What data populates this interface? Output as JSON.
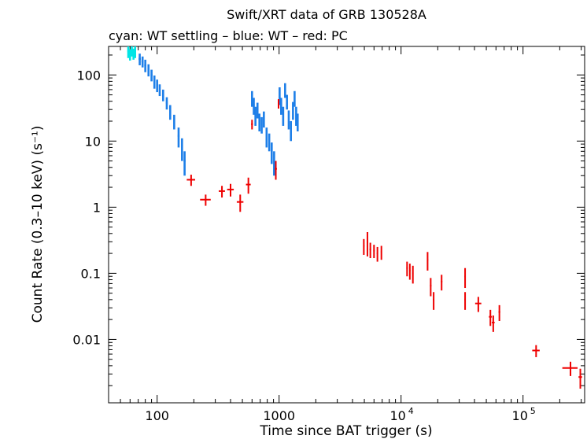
{
  "chart_data": {
    "type": "scatter",
    "title": "Swift/XRT data of GRB 130528A",
    "subtitle": "cyan: WT settling – blue: WT – red: PC",
    "xlabel": "Time since BAT trigger (s)",
    "ylabel": "Count Rate (0.3–10 keV) (s⁻¹)",
    "xscale": "log",
    "yscale": "log",
    "xlim": [
      40,
      320000
    ],
    "ylim": [
      0.0011,
      270
    ],
    "x_ticks": [
      {
        "value": 100,
        "label": "100"
      },
      {
        "value": 1000,
        "label": "1000"
      },
      {
        "value": 10000,
        "label": "10",
        "exp": "4"
      },
      {
        "value": 100000,
        "label": "10",
        "exp": "5"
      }
    ],
    "y_ticks": [
      {
        "value": 100,
        "label": "100"
      },
      {
        "value": 10,
        "label": "10"
      },
      {
        "value": 1,
        "label": "1"
      },
      {
        "value": 0.1,
        "label": "0.1"
      },
      {
        "value": 0.01,
        "label": "0.01"
      }
    ],
    "series": [
      {
        "name": "WT settling",
        "color": "#00e5e5",
        "style": "dense",
        "points": [
          [
            58,
            230,
            1,
            50
          ],
          [
            60,
            205,
            1,
            40
          ],
          [
            62,
            240,
            1,
            50
          ],
          [
            64,
            210,
            1,
            40
          ],
          [
            66,
            225,
            1,
            45
          ]
        ]
      },
      {
        "name": "WT",
        "color": "#1e7fe8",
        "style": "dense",
        "points": [
          [
            72,
            175,
            1.5,
            35
          ],
          [
            76,
            160,
            1.5,
            30
          ],
          [
            80,
            140,
            1.5,
            30
          ],
          [
            85,
            120,
            1.5,
            25
          ],
          [
            90,
            100,
            1.5,
            20
          ],
          [
            95,
            80,
            1.5,
            18
          ],
          [
            100,
            70,
            1.5,
            15
          ],
          [
            105,
            60,
            1.5,
            12
          ],
          [
            112,
            50,
            2,
            10
          ],
          [
            120,
            38,
            2,
            8
          ],
          [
            128,
            28,
            2,
            7
          ],
          [
            138,
            20,
            2,
            5
          ],
          [
            150,
            12,
            2.5,
            4
          ],
          [
            160,
            8,
            2.5,
            3
          ],
          [
            168,
            5,
            3,
            2
          ],
          [
            600,
            45,
            10,
            12
          ],
          [
            620,
            35,
            10,
            10
          ],
          [
            640,
            25,
            10,
            8
          ],
          [
            665,
            30,
            10,
            8
          ],
          [
            690,
            20,
            10,
            6
          ],
          [
            720,
            18,
            10,
            5
          ],
          [
            750,
            22,
            10,
            6
          ],
          [
            790,
            12,
            10,
            4
          ],
          [
            830,
            10,
            10,
            3
          ],
          [
            870,
            7,
            12,
            2.5
          ],
          [
            910,
            5,
            12,
            2
          ],
          [
            1010,
            50,
            12,
            15
          ],
          [
            1040,
            35,
            12,
            10
          ],
          [
            1080,
            25,
            12,
            8
          ],
          [
            1120,
            60,
            15,
            15
          ],
          [
            1160,
            40,
            15,
            10
          ],
          [
            1200,
            22,
            15,
            7
          ],
          [
            1250,
            15,
            15,
            5
          ],
          [
            1300,
            30,
            15,
            9
          ],
          [
            1340,
            45,
            15,
            12
          ],
          [
            1380,
            25,
            15,
            8
          ],
          [
            1420,
            20,
            15,
            6
          ]
        ]
      },
      {
        "name": "PC",
        "color": "#ee0000",
        "style": "cross",
        "points": [
          [
            190,
            2.6,
            15,
            0.5
          ],
          [
            250,
            1.3,
            25,
            0.25
          ],
          [
            340,
            1.75,
            20,
            0.35
          ],
          [
            400,
            1.85,
            25,
            0.4
          ],
          [
            480,
            1.2,
            30,
            0.35
          ],
          [
            560,
            2.2,
            25,
            0.6
          ],
          [
            600,
            18,
            10,
            3
          ],
          [
            940,
            3.8,
            20,
            1.2
          ],
          [
            990,
            37,
            10,
            6
          ],
          [
            4950,
            0.26,
            60,
            0.07
          ],
          [
            5300,
            0.3,
            60,
            0.12
          ],
          [
            5600,
            0.23,
            80,
            0.06
          ],
          [
            6000,
            0.22,
            80,
            0.05
          ],
          [
            6400,
            0.2,
            80,
            0.05
          ],
          [
            6900,
            0.21,
            80,
            0.05
          ],
          [
            11200,
            0.12,
            150,
            0.03
          ],
          [
            11800,
            0.11,
            150,
            0.03
          ],
          [
            12500,
            0.1,
            150,
            0.03
          ],
          [
            16500,
            0.16,
            200,
            0.05
          ],
          [
            17500,
            0.065,
            250,
            0.02
          ],
          [
            18500,
            0.04,
            250,
            0.012
          ],
          [
            21500,
            0.075,
            300,
            0.02
          ],
          [
            33500,
            0.09,
            400,
            0.03
          ],
          [
            33500,
            0.04,
            400,
            0.012
          ],
          [
            43000,
            0.035,
            2500,
            0.009
          ],
          [
            54000,
            0.022,
            1500,
            0.006
          ],
          [
            57000,
            0.018,
            1500,
            0.005
          ],
          [
            64000,
            0.026,
            1000,
            0.007
          ],
          [
            128000,
            0.0068,
            9000,
            0.0014
          ],
          [
            245000,
            0.0037,
            35000,
            0.0009
          ],
          [
            295000,
            0.0027,
            10000,
            0.0009
          ]
        ]
      }
    ]
  }
}
